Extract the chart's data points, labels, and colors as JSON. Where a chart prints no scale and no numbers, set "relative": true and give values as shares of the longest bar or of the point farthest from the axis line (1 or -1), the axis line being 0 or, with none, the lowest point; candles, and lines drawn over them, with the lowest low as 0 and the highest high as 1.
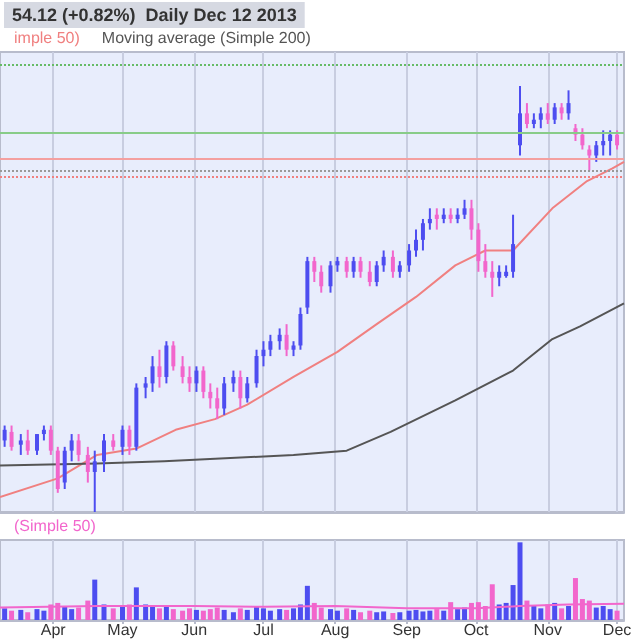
{
  "chart_data": [
    {
      "type": "candlestick",
      "title": "54.12 (+0.82%)  Daily Dec 12 2013",
      "relative": true,
      "legend": "top left",
      "grid": "x",
      "tick_labels": false,
      "xlim": [
        "2013-03-09",
        "2013-12-04"
      ],
      "xticks": [
        {
          "value": "2013-04-01",
          "label": null
        },
        {
          "value": "2013-05-01",
          "label": null
        },
        {
          "value": "2013-06-01",
          "label": null
        },
        {
          "value": "2013-07-01",
          "label": null
        },
        {
          "value": "2013-08-01",
          "label": null
        },
        {
          "value": "2013-09-01",
          "label": null
        },
        {
          "value": "2013-10-01",
          "label": null
        },
        {
          "value": "2013-11-01",
          "label": null
        },
        {
          "value": "2013-12-01",
          "label": null
        }
      ],
      "x": [
        "2013-03-11",
        "2013-03-14",
        "2013-03-18",
        "2013-03-21",
        "2013-03-25",
        "2013-03-28",
        "2013-03-31",
        "2013-04-03",
        "2013-04-06",
        "2013-04-09",
        "2013-04-12",
        "2013-04-16",
        "2013-04-19",
        "2013-04-23",
        "2013-04-27",
        "2013-05-01",
        "2013-05-04",
        "2013-05-07",
        "2013-05-11",
        "2013-05-14",
        "2013-05-17",
        "2013-05-20",
        "2013-05-23",
        "2013-05-27",
        "2013-05-30",
        "2013-06-02",
        "2013-06-05",
        "2013-06-08",
        "2013-06-11",
        "2013-06-14",
        "2013-06-18",
        "2013-06-21",
        "2013-06-24",
        "2013-06-28",
        "2013-07-01",
        "2013-07-04",
        "2013-07-08",
        "2013-07-11",
        "2013-07-14",
        "2013-07-17",
        "2013-07-20",
        "2013-07-23",
        "2013-07-26",
        "2013-07-30",
        "2013-08-02",
        "2013-08-06",
        "2013-08-09",
        "2013-08-12",
        "2013-08-16",
        "2013-08-19",
        "2013-08-22",
        "2013-08-26",
        "2013-08-29",
        "2013-09-02",
        "2013-09-05",
        "2013-09-08",
        "2013-09-11",
        "2013-09-14",
        "2013-09-17",
        "2013-09-20",
        "2013-09-23",
        "2013-09-26",
        "2013-09-29",
        "2013-10-02",
        "2013-10-05",
        "2013-10-08",
        "2013-10-11",
        "2013-10-14",
        "2013-10-17",
        "2013-10-20",
        "2013-10-23",
        "2013-10-26",
        "2013-10-29",
        "2013-11-01",
        "2013-11-04",
        "2013-11-07",
        "2013-11-10",
        "2013-11-13",
        "2013-11-16",
        "2013-11-19",
        "2013-11-22",
        "2013-11-25",
        "2013-11-28",
        "2013-12-01"
      ],
      "ohlc": [
        [
          0.168,
          0.203,
          0.153,
          0.193
        ],
        [
          0.188,
          0.203,
          0.144,
          0.153
        ],
        [
          0.158,
          0.183,
          0.134,
          0.168
        ],
        [
          0.168,
          0.193,
          0.134,
          0.144
        ],
        [
          0.144,
          0.183,
          0.134,
          0.183
        ],
        [
          0.183,
          0.203,
          0.168,
          0.193
        ],
        [
          0.193,
          0.203,
          0.134,
          0.144
        ],
        [
          0.144,
          0.153,
          0.045,
          0.054
        ],
        [
          0.069,
          0.153,
          0.054,
          0.144
        ],
        [
          0.144,
          0.183,
          0.119,
          0.168
        ],
        [
          0.168,
          0.183,
          0.119,
          0.134
        ],
        [
          0.134,
          0.153,
          0.069,
          0.094
        ],
        [
          0.094,
          0.144,
          0,
          0.119
        ],
        [
          0.119,
          0.183,
          0.094,
          0.168
        ],
        [
          0.168,
          0.183,
          0.144,
          0.153
        ],
        [
          0.153,
          0.203,
          0.134,
          0.193
        ],
        [
          0.193,
          0.203,
          0.134,
          0.153
        ],
        [
          0.153,
          0.302,
          0.144,
          0.292
        ],
        [
          0.292,
          0.317,
          0.267,
          0.302
        ],
        [
          0.302,
          0.366,
          0.282,
          0.342
        ],
        [
          0.342,
          0.381,
          0.292,
          0.317
        ],
        [
          0.317,
          0.401,
          0.302,
          0.391
        ],
        [
          0.391,
          0.401,
          0.332,
          0.342
        ],
        [
          0.342,
          0.366,
          0.302,
          0.317
        ],
        [
          0.317,
          0.342,
          0.282,
          0.302
        ],
        [
          0.302,
          0.342,
          0.282,
          0.332
        ],
        [
          0.332,
          0.342,
          0.267,
          0.282
        ],
        [
          0.282,
          0.302,
          0.243,
          0.267
        ],
        [
          0.267,
          0.292,
          0.218,
          0.243
        ],
        [
          0.243,
          0.317,
          0.228,
          0.302
        ],
        [
          0.302,
          0.332,
          0.282,
          0.317
        ],
        [
          0.317,
          0.332,
          0.243,
          0.267
        ],
        [
          0.267,
          0.317,
          0.257,
          0.302
        ],
        [
          0.302,
          0.381,
          0.292,
          0.366
        ],
        [
          0.366,
          0.401,
          0.342,
          0.381
        ],
        [
          0.381,
          0.416,
          0.366,
          0.401
        ],
        [
          0.401,
          0.431,
          0.381,
          0.416
        ],
        [
          0.416,
          0.441,
          0.366,
          0.381
        ],
        [
          0.381,
          0.401,
          0.366,
          0.391
        ],
        [
          0.391,
          0.48,
          0.381,
          0.465
        ],
        [
          0.48,
          0.599,
          0.465,
          0.589
        ],
        [
          0.589,
          0.599,
          0.54,
          0.564
        ],
        [
          0.564,
          0.579,
          0.515,
          0.53
        ],
        [
          0.53,
          0.589,
          0.515,
          0.579
        ],
        [
          0.579,
          0.599,
          0.564,
          0.589
        ],
        [
          0.589,
          0.599,
          0.55,
          0.564
        ],
        [
          0.564,
          0.599,
          0.55,
          0.589
        ],
        [
          0.589,
          0.599,
          0.55,
          0.564
        ],
        [
          0.564,
          0.589,
          0.53,
          0.54
        ],
        [
          0.54,
          0.589,
          0.53,
          0.579
        ],
        [
          0.579,
          0.614,
          0.564,
          0.599
        ],
        [
          0.599,
          0.614,
          0.55,
          0.564
        ],
        [
          0.564,
          0.589,
          0.55,
          0.579
        ],
        [
          0.579,
          0.629,
          0.564,
          0.614
        ],
        [
          0.614,
          0.663,
          0.599,
          0.639
        ],
        [
          0.639,
          0.688,
          0.614,
          0.678
        ],
        [
          0.678,
          0.713,
          0.663,
          0.688
        ],
        [
          0.698,
          0.713,
          0.663,
          0.688
        ],
        [
          0.688,
          0.713,
          0.678,
          0.698
        ],
        [
          0.698,
          0.713,
          0.678,
          0.688
        ],
        [
          0.688,
          0.713,
          0.678,
          0.698
        ],
        [
          0.698,
          0.733,
          0.688,
          0.713
        ],
        [
          0.713,
          0.733,
          0.639,
          0.663
        ],
        [
          0.663,
          0.678,
          0.564,
          0.589
        ],
        [
          0.589,
          0.629,
          0.55,
          0.564
        ],
        [
          0.564,
          0.589,
          0.505,
          0.55
        ],
        [
          0.55,
          0.579,
          0.53,
          0.564
        ],
        [
          0.554,
          0.579,
          0.55,
          0.564
        ],
        [
          0.564,
          0.698,
          0.55,
          0.629
        ],
        [
          0.861,
          1,
          0.837,
          0.936
        ],
        [
          0.936,
          0.96,
          0.901,
          0.911
        ],
        [
          0.911,
          0.936,
          0.901,
          0.921
        ],
        [
          0.921,
          0.95,
          0.901,
          0.936
        ],
        [
          0.936,
          0.96,
          0.911,
          0.921
        ],
        [
          0.921,
          0.96,
          0.911,
          0.95
        ],
        [
          0.95,
          0.96,
          0.921,
          0.936
        ],
        [
          0.936,
          0.99,
          0.921,
          0.96
        ],
        [
          0.901,
          0.911,
          0.871,
          0.886
        ],
        [
          0.886,
          0.901,
          0.851,
          0.861
        ],
        [
          0.851,
          0.861,
          0.802,
          0.837
        ],
        [
          0.837,
          0.871,
          0.822,
          0.861
        ],
        [
          0.861,
          0.896,
          0.837,
          0.871
        ],
        [
          0.871,
          0.896,
          0.837,
          0.886
        ],
        [
          0.886,
          0.896,
          0.851,
          0.861
        ]
      ],
      "colors": [
        "#4d4df0",
        "#f266cc",
        "#4d4df0",
        "#f266cc",
        "#4d4df0",
        "#4d4df0",
        "#f266cc",
        "#f266cc",
        "#4d4df0",
        "#4d4df0",
        "#f266cc",
        "#f266cc",
        "#4d4df0",
        "#4d4df0",
        "#f266cc",
        "#4d4df0",
        "#f266cc",
        "#4d4df0",
        "#4d4df0",
        "#4d4df0",
        "#f266cc",
        "#4d4df0",
        "#f266cc",
        "#f266cc",
        "#f266cc",
        "#4d4df0",
        "#f266cc",
        "#f266cc",
        "#f266cc",
        "#4d4df0",
        "#4d4df0",
        "#f266cc",
        "#4d4df0",
        "#4d4df0",
        "#4d4df0",
        "#4d4df0",
        "#4d4df0",
        "#f266cc",
        "#4d4df0",
        "#4d4df0",
        "#4d4df0",
        "#f266cc",
        "#f266cc",
        "#4d4df0",
        "#4d4df0",
        "#f266cc",
        "#4d4df0",
        "#f266cc",
        "#f266cc",
        "#4d4df0",
        "#4d4df0",
        "#f266cc",
        "#4d4df0",
        "#4d4df0",
        "#4d4df0",
        "#4d4df0",
        "#4d4df0",
        "#f266cc",
        "#4d4df0",
        "#f266cc",
        "#4d4df0",
        "#4d4df0",
        "#f266cc",
        "#f266cc",
        "#f266cc",
        "#f266cc",
        "#4d4df0",
        "#4d4df0",
        "#4d4df0",
        "#4d4df0",
        "#f266cc",
        "#4d4df0",
        "#4d4df0",
        "#f266cc",
        "#4d4df0",
        "#f266cc",
        "#4d4df0",
        "#f266cc",
        "#f266cc",
        "#f266cc",
        "#4d4df0",
        "#4d4df0",
        "#4d4df0",
        "#f266cc"
      ],
      "series": [
        {
          "name": "imple 50)",
          "type": "line",
          "color": "#f08080",
          "x": [
            "2013-03-09",
            "2013-04-03",
            "2013-04-20",
            "2013-05-07",
            "2013-05-24",
            "2013-06-10",
            "2013-06-24",
            "2013-07-14",
            "2013-08-02",
            "2013-08-19",
            "2013-09-05",
            "2013-09-22",
            "2013-10-05",
            "2013-10-17",
            "2013-11-03",
            "2013-11-18",
            "2013-11-29",
            "2013-12-04"
          ],
          "values": [
            0.035,
            0.079,
            0.134,
            0.149,
            0.193,
            0.218,
            0.252,
            0.317,
            0.376,
            0.441,
            0.505,
            0.579,
            0.614,
            0.614,
            0.713,
            0.777,
            0.807,
            0.822
          ]
        },
        {
          "name": "Moving average (Simple 200)",
          "type": "line",
          "color": "#555555",
          "x": [
            "2013-03-09",
            "2013-04-20",
            "2013-05-19",
            "2013-07-14",
            "2013-08-06",
            "2013-08-25",
            "2013-09-22",
            "2013-10-17",
            "2013-11-03",
            "2013-11-15",
            "2013-12-04"
          ],
          "values": [
            0.109,
            0.114,
            0.119,
            0.134,
            0.144,
            0.188,
            0.262,
            0.332,
            0.406,
            0.436,
            0.49
          ]
        }
      ],
      "ref_lines": [
        {
          "axis": "y",
          "value": 1.05,
          "color": "#66bb66",
          "line_style": "dotted"
        },
        {
          "axis": "y",
          "value": 0.886,
          "color": "#88cc88",
          "line_style": "solid"
        },
        {
          "axis": "y",
          "value": 0.827,
          "color": "#f4a0a0",
          "line_style": "solid"
        },
        {
          "axis": "y",
          "value": 0.802,
          "color": "#999999",
          "line_style": "dotted"
        },
        {
          "axis": "y",
          "value": 0.787,
          "color": "#f08080",
          "line_style": "dotted"
        }
      ]
    },
    {
      "type": "bar",
      "relative": true,
      "legend": "top left",
      "grid": "x",
      "tick_labels": "x",
      "xlim": [
        "2013-03-09",
        "2013-12-04"
      ],
      "xticks": [
        {
          "value": "2013-04-01",
          "label": "Apr"
        },
        {
          "value": "2013-05-01",
          "label": "May"
        },
        {
          "value": "2013-06-01",
          "label": "Jun"
        },
        {
          "value": "2013-07-01",
          "label": "Jul"
        },
        {
          "value": "2013-08-01",
          "label": "Aug"
        },
        {
          "value": "2013-09-01",
          "label": "Sep"
        },
        {
          "value": "2013-10-01",
          "label": "Oct"
        },
        {
          "value": "2013-11-01",
          "label": "Nov"
        },
        {
          "value": "2013-12-01",
          "label": "Dec"
        }
      ],
      "x": [
        "2013-03-11",
        "2013-03-14",
        "2013-03-18",
        "2013-03-21",
        "2013-03-25",
        "2013-03-28",
        "2013-03-31",
        "2013-04-03",
        "2013-04-06",
        "2013-04-09",
        "2013-04-12",
        "2013-04-16",
        "2013-04-19",
        "2013-04-23",
        "2013-04-27",
        "2013-05-01",
        "2013-05-04",
        "2013-05-07",
        "2013-05-11",
        "2013-05-14",
        "2013-05-17",
        "2013-05-20",
        "2013-05-23",
        "2013-05-27",
        "2013-05-30",
        "2013-06-02",
        "2013-06-05",
        "2013-06-08",
        "2013-06-11",
        "2013-06-14",
        "2013-06-18",
        "2013-06-21",
        "2013-06-24",
        "2013-06-28",
        "2013-07-01",
        "2013-07-04",
        "2013-07-08",
        "2013-07-11",
        "2013-07-14",
        "2013-07-17",
        "2013-07-20",
        "2013-07-23",
        "2013-07-26",
        "2013-07-30",
        "2013-08-02",
        "2013-08-06",
        "2013-08-09",
        "2013-08-12",
        "2013-08-16",
        "2013-08-19",
        "2013-08-22",
        "2013-08-26",
        "2013-08-29",
        "2013-09-02",
        "2013-09-05",
        "2013-09-08",
        "2013-09-11",
        "2013-09-14",
        "2013-09-17",
        "2013-09-20",
        "2013-09-23",
        "2013-09-26",
        "2013-09-29",
        "2013-10-02",
        "2013-10-05",
        "2013-10-08",
        "2013-10-11",
        "2013-10-14",
        "2013-10-17",
        "2013-10-20",
        "2013-10-23",
        "2013-10-26",
        "2013-10-29",
        "2013-11-01",
        "2013-11-04",
        "2013-11-07",
        "2013-11-10",
        "2013-11-13",
        "2013-11-16",
        "2013-11-19",
        "2013-11-22",
        "2013-11-25",
        "2013-11-28",
        "2013-12-01"
      ],
      "values": [
        0.15,
        0.12,
        0.13,
        0.1,
        0.14,
        0.12,
        0.2,
        0.22,
        0.18,
        0.14,
        0.16,
        0.25,
        0.52,
        0.2,
        0.15,
        0.18,
        0.2,
        0.42,
        0.2,
        0.17,
        0.15,
        0.18,
        0.14,
        0.12,
        0.15,
        0.13,
        0.12,
        0.14,
        0.16,
        0.13,
        0.1,
        0.15,
        0.13,
        0.17,
        0.15,
        0.12,
        0.14,
        0.13,
        0.15,
        0.2,
        0.44,
        0.22,
        0.16,
        0.14,
        0.12,
        0.15,
        0.13,
        0.1,
        0.12,
        0.1,
        0.11,
        0.09,
        0.1,
        0.12,
        0.13,
        0.11,
        0.12,
        0.14,
        0.12,
        0.23,
        0.14,
        0.16,
        0.22,
        0.23,
        0.18,
        0.46,
        0.2,
        0.22,
        0.45,
        1,
        0.25,
        0.18,
        0.15,
        0.2,
        0.22,
        0.15,
        0.18,
        0.54,
        0.27,
        0.25,
        0.16,
        0.18,
        0.14,
        0.12
      ],
      "colors": [
        "#4d4df0",
        "#f266cc",
        "#4d4df0",
        "#f266cc",
        "#4d4df0",
        "#4d4df0",
        "#f266cc",
        "#f266cc",
        "#4d4df0",
        "#4d4df0",
        "#f266cc",
        "#f266cc",
        "#4d4df0",
        "#4d4df0",
        "#f266cc",
        "#4d4df0",
        "#f266cc",
        "#4d4df0",
        "#4d4df0",
        "#4d4df0",
        "#f266cc",
        "#4d4df0",
        "#f266cc",
        "#f266cc",
        "#f266cc",
        "#4d4df0",
        "#f266cc",
        "#f266cc",
        "#f266cc",
        "#4d4df0",
        "#4d4df0",
        "#f266cc",
        "#4d4df0",
        "#4d4df0",
        "#4d4df0",
        "#4d4df0",
        "#4d4df0",
        "#f266cc",
        "#4d4df0",
        "#4d4df0",
        "#4d4df0",
        "#f266cc",
        "#f266cc",
        "#4d4df0",
        "#4d4df0",
        "#f266cc",
        "#4d4df0",
        "#f266cc",
        "#f266cc",
        "#4d4df0",
        "#4d4df0",
        "#f266cc",
        "#4d4df0",
        "#4d4df0",
        "#4d4df0",
        "#4d4df0",
        "#4d4df0",
        "#f266cc",
        "#4d4df0",
        "#f266cc",
        "#4d4df0",
        "#4d4df0",
        "#f266cc",
        "#f266cc",
        "#f266cc",
        "#f266cc",
        "#4d4df0",
        "#4d4df0",
        "#4d4df0",
        "#4d4df0",
        "#f266cc",
        "#4d4df0",
        "#4d4df0",
        "#f266cc",
        "#4d4df0",
        "#f266cc",
        "#4d4df0",
        "#f266cc",
        "#f266cc",
        "#f266cc",
        "#4d4df0",
        "#4d4df0",
        "#4d4df0",
        "#f266cc"
      ],
      "series": [
        {
          "name": "(Simple 50)",
          "type": "line",
          "color": "#f266cc",
          "x": [
            "2013-03-09",
            "2013-04-20",
            "2013-06-01",
            "2013-07-01",
            "2013-08-01",
            "2013-09-01",
            "2013-10-01",
            "2013-10-20",
            "2013-11-10",
            "2013-12-04"
          ],
          "values": [
            0.16,
            0.18,
            0.18,
            0.17,
            0.18,
            0.15,
            0.15,
            0.18,
            0.2,
            0.21
          ]
        }
      ]
    }
  ]
}
